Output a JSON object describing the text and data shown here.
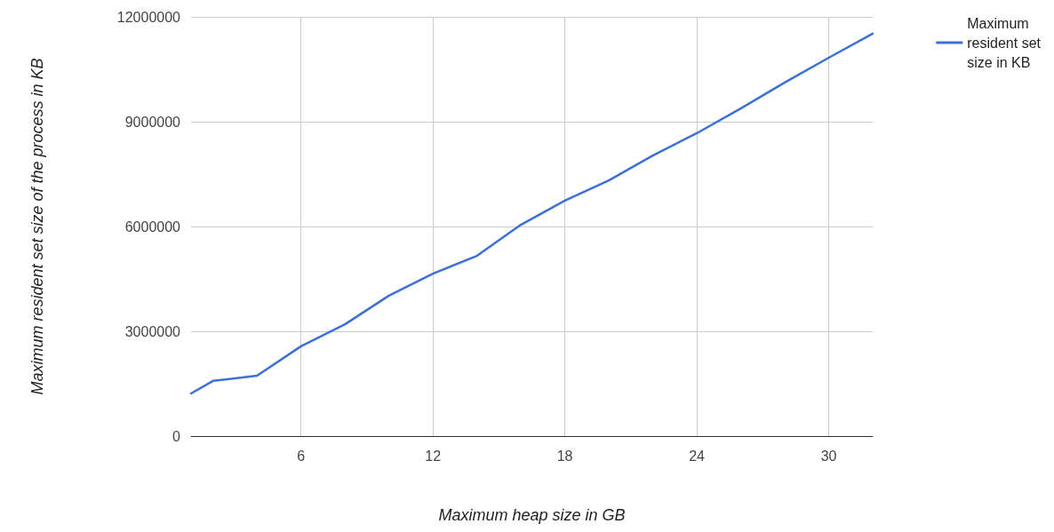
{
  "chart_data": {
    "type": "line",
    "xlabel": "Maximum heap size in GB",
    "ylabel": "Maximum resident set size of the process in KB",
    "x": [
      1,
      2,
      4,
      6,
      8,
      10,
      12,
      14,
      16,
      18,
      20,
      22,
      24,
      26,
      28,
      30,
      32
    ],
    "series": [
      {
        "name": "Maximum resident set size in KB",
        "color": "#3d6fd8",
        "values": [
          1220000,
          1580000,
          1730000,
          2570000,
          3200000,
          4020000,
          4650000,
          5160000,
          6050000,
          6740000,
          7320000,
          8030000,
          8670000,
          9380000,
          10120000,
          10830000,
          11520000
        ]
      }
    ],
    "xlim": [
      1,
      32
    ],
    "xticks": [
      6,
      12,
      18,
      24,
      30
    ],
    "ylim": [
      0,
      12000000
    ],
    "yticks": [
      0,
      3000000,
      6000000,
      9000000,
      12000000
    ],
    "grid": true,
    "legend": "top right",
    "marker": "none",
    "line_style": "solid"
  }
}
